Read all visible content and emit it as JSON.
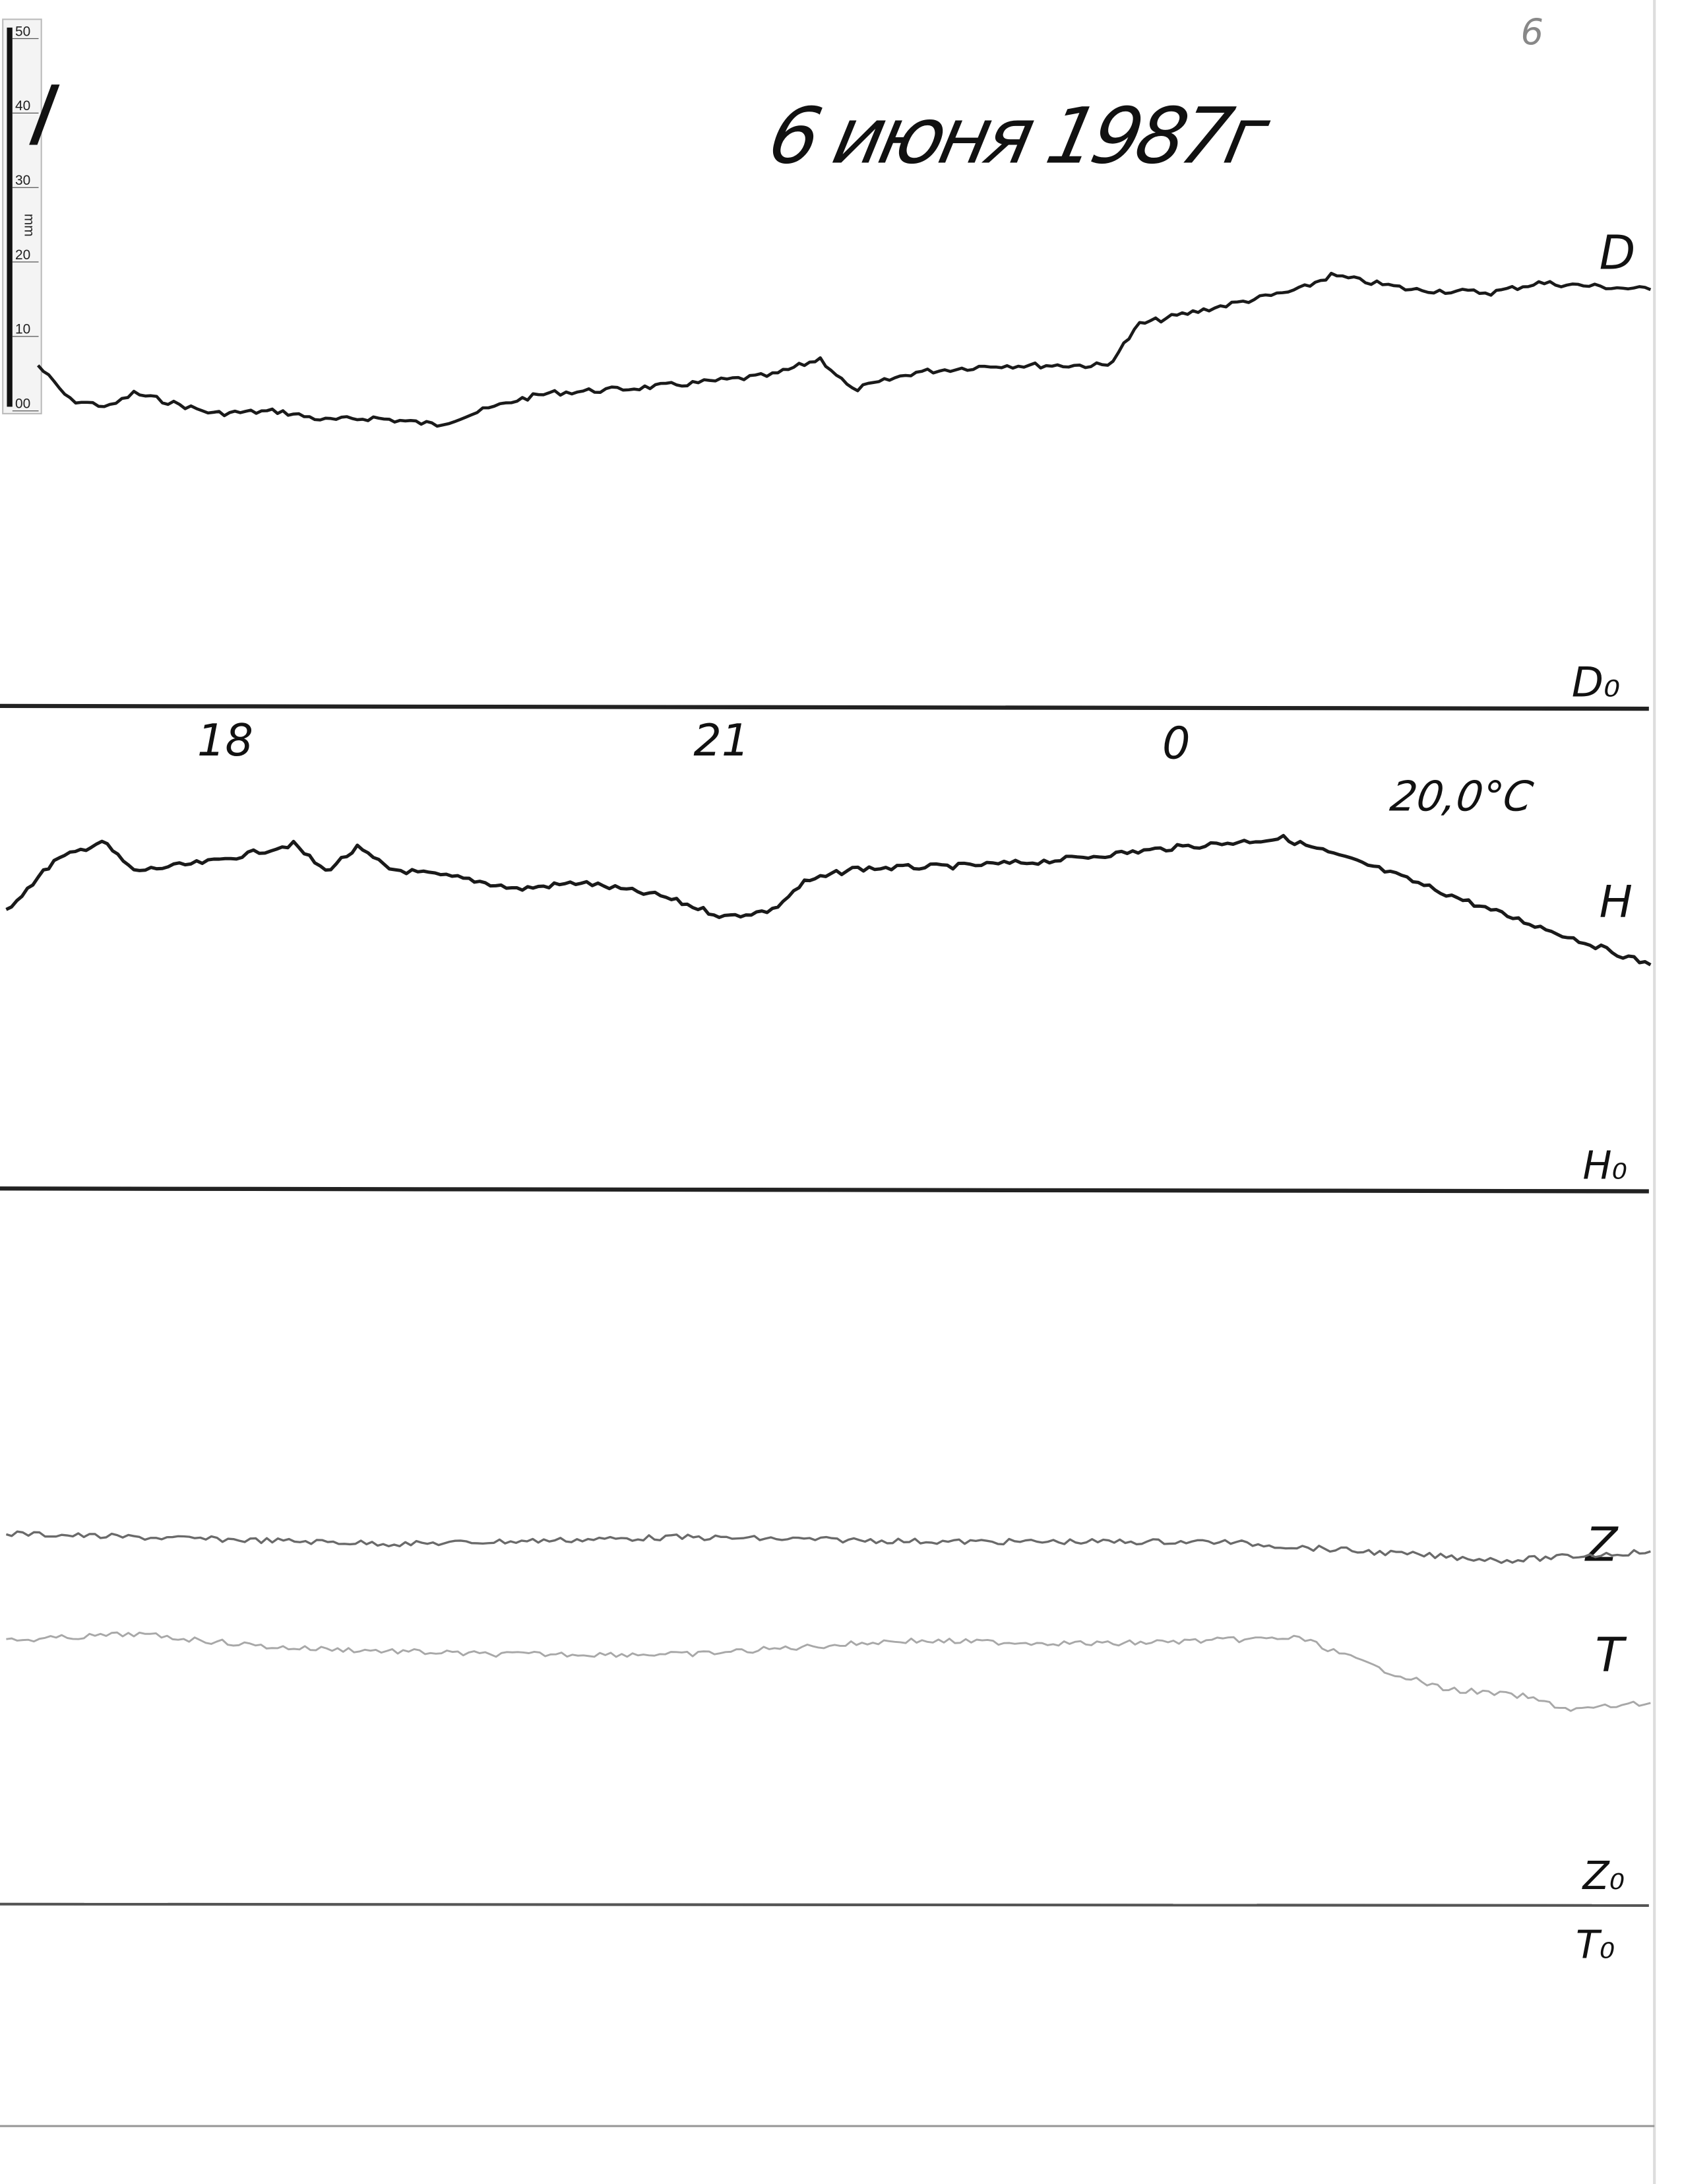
{
  "header": {
    "title": "6 июня 1987г",
    "page_number": "6",
    "sheet_mark": "I"
  },
  "scale_bar": {
    "unit": "mm",
    "ticks": [
      "00",
      "10",
      "20",
      "30",
      "40",
      "50"
    ]
  },
  "chart_data": {
    "type": "line",
    "title": "6 июня 1987г",
    "xlabel": "",
    "ylabel": "",
    "x_ticks": [
      "18",
      "21",
      "0"
    ],
    "x_tick_hours": [
      18,
      21,
      0
    ],
    "temperature_label": "20,0°C",
    "grid": false,
    "colors": {
      "D": "#1a1a1a",
      "H": "#1a1a1a",
      "Z": "#6a6a6a",
      "T": "#a8a8a8",
      "baseline": "#222222"
    },
    "baselines": [
      {
        "label": "D₀"
      },
      {
        "label": "H₀"
      },
      {
        "label": "Z₀",
        "label2": "T₀"
      }
    ],
    "series": [
      {
        "name": "D",
        "baseline": 0,
        "points": [
          [
            16.9,
            45.4
          ],
          [
            17.1,
            40.8
          ],
          [
            17.35,
            39.9
          ],
          [
            17.5,
            41.7
          ],
          [
            18.0,
            39.0
          ],
          [
            18.4,
            39.3
          ],
          [
            18.7,
            38.1
          ],
          [
            19.0,
            38.4
          ],
          [
            19.4,
            37.5
          ],
          [
            19.9,
            40.8
          ],
          [
            20.1,
            41.7
          ],
          [
            20.6,
            42.3
          ],
          [
            21.0,
            43.0
          ],
          [
            21.5,
            44.1
          ],
          [
            21.8,
            46.3
          ],
          [
            22.0,
            42.1
          ],
          [
            22.4,
            44.5
          ],
          [
            22.9,
            45.4
          ],
          [
            23.6,
            45.4
          ],
          [
            23.8,
            50.9
          ],
          [
            0.2,
            52.8
          ],
          [
            0.8,
            55.5
          ],
          [
            1.0,
            57.4
          ],
          [
            1.5,
            55.5
          ],
          [
            2.0,
            55.1
          ],
          [
            2.3,
            56.4
          ],
          [
            3.0,
            55.5
          ]
        ]
      },
      {
        "name": "H",
        "baseline": 1,
        "points": [
          [
            16.7,
            37.3
          ],
          [
            17.0,
            43.8
          ],
          [
            17.3,
            46.5
          ],
          [
            17.5,
            42.5
          ],
          [
            18.0,
            43.8
          ],
          [
            18.5,
            46.1
          ],
          [
            18.7,
            42.5
          ],
          [
            18.9,
            45.6
          ],
          [
            19.1,
            42.8
          ],
          [
            19.6,
            41.4
          ],
          [
            19.9,
            40.1
          ],
          [
            20.3,
            41.0
          ],
          [
            20.8,
            39.2
          ],
          [
            21.2,
            36.4
          ],
          [
            21.5,
            37.3
          ],
          [
            21.7,
            41.0
          ],
          [
            22.0,
            42.8
          ],
          [
            22.7,
            43.2
          ],
          [
            23.2,
            43.8
          ],
          [
            0.0,
            45.6
          ],
          [
            0.7,
            46.9
          ],
          [
            1.3,
            42.8
          ],
          [
            2.0,
            37.3
          ],
          [
            3.0,
            30.0
          ]
        ]
      },
      {
        "name": "Z",
        "baseline": 2,
        "points": [
          [
            16.7,
            49.6
          ],
          [
            17.5,
            49.1
          ],
          [
            19.2,
            48.2
          ],
          [
            20.9,
            49.1
          ],
          [
            22.6,
            48.5
          ],
          [
            0.3,
            48.5
          ],
          [
            1.2,
            47.2
          ],
          [
            2.1,
            46.0
          ],
          [
            3.0,
            47.2
          ]
        ]
      },
      {
        "name": "T",
        "baseline": 2,
        "points": [
          [
            16.7,
            35.3
          ],
          [
            17.5,
            36.2
          ],
          [
            18.4,
            34.4
          ],
          [
            19.7,
            33.5
          ],
          [
            21.0,
            33.5
          ],
          [
            22.3,
            35.3
          ],
          [
            23.6,
            34.9
          ],
          [
            0.8,
            35.7
          ],
          [
            1.3,
            31.6
          ],
          [
            1.7,
            28.9
          ],
          [
            2.2,
            27.9
          ],
          [
            2.5,
            26.1
          ],
          [
            3.0,
            27.0
          ]
        ]
      }
    ]
  }
}
